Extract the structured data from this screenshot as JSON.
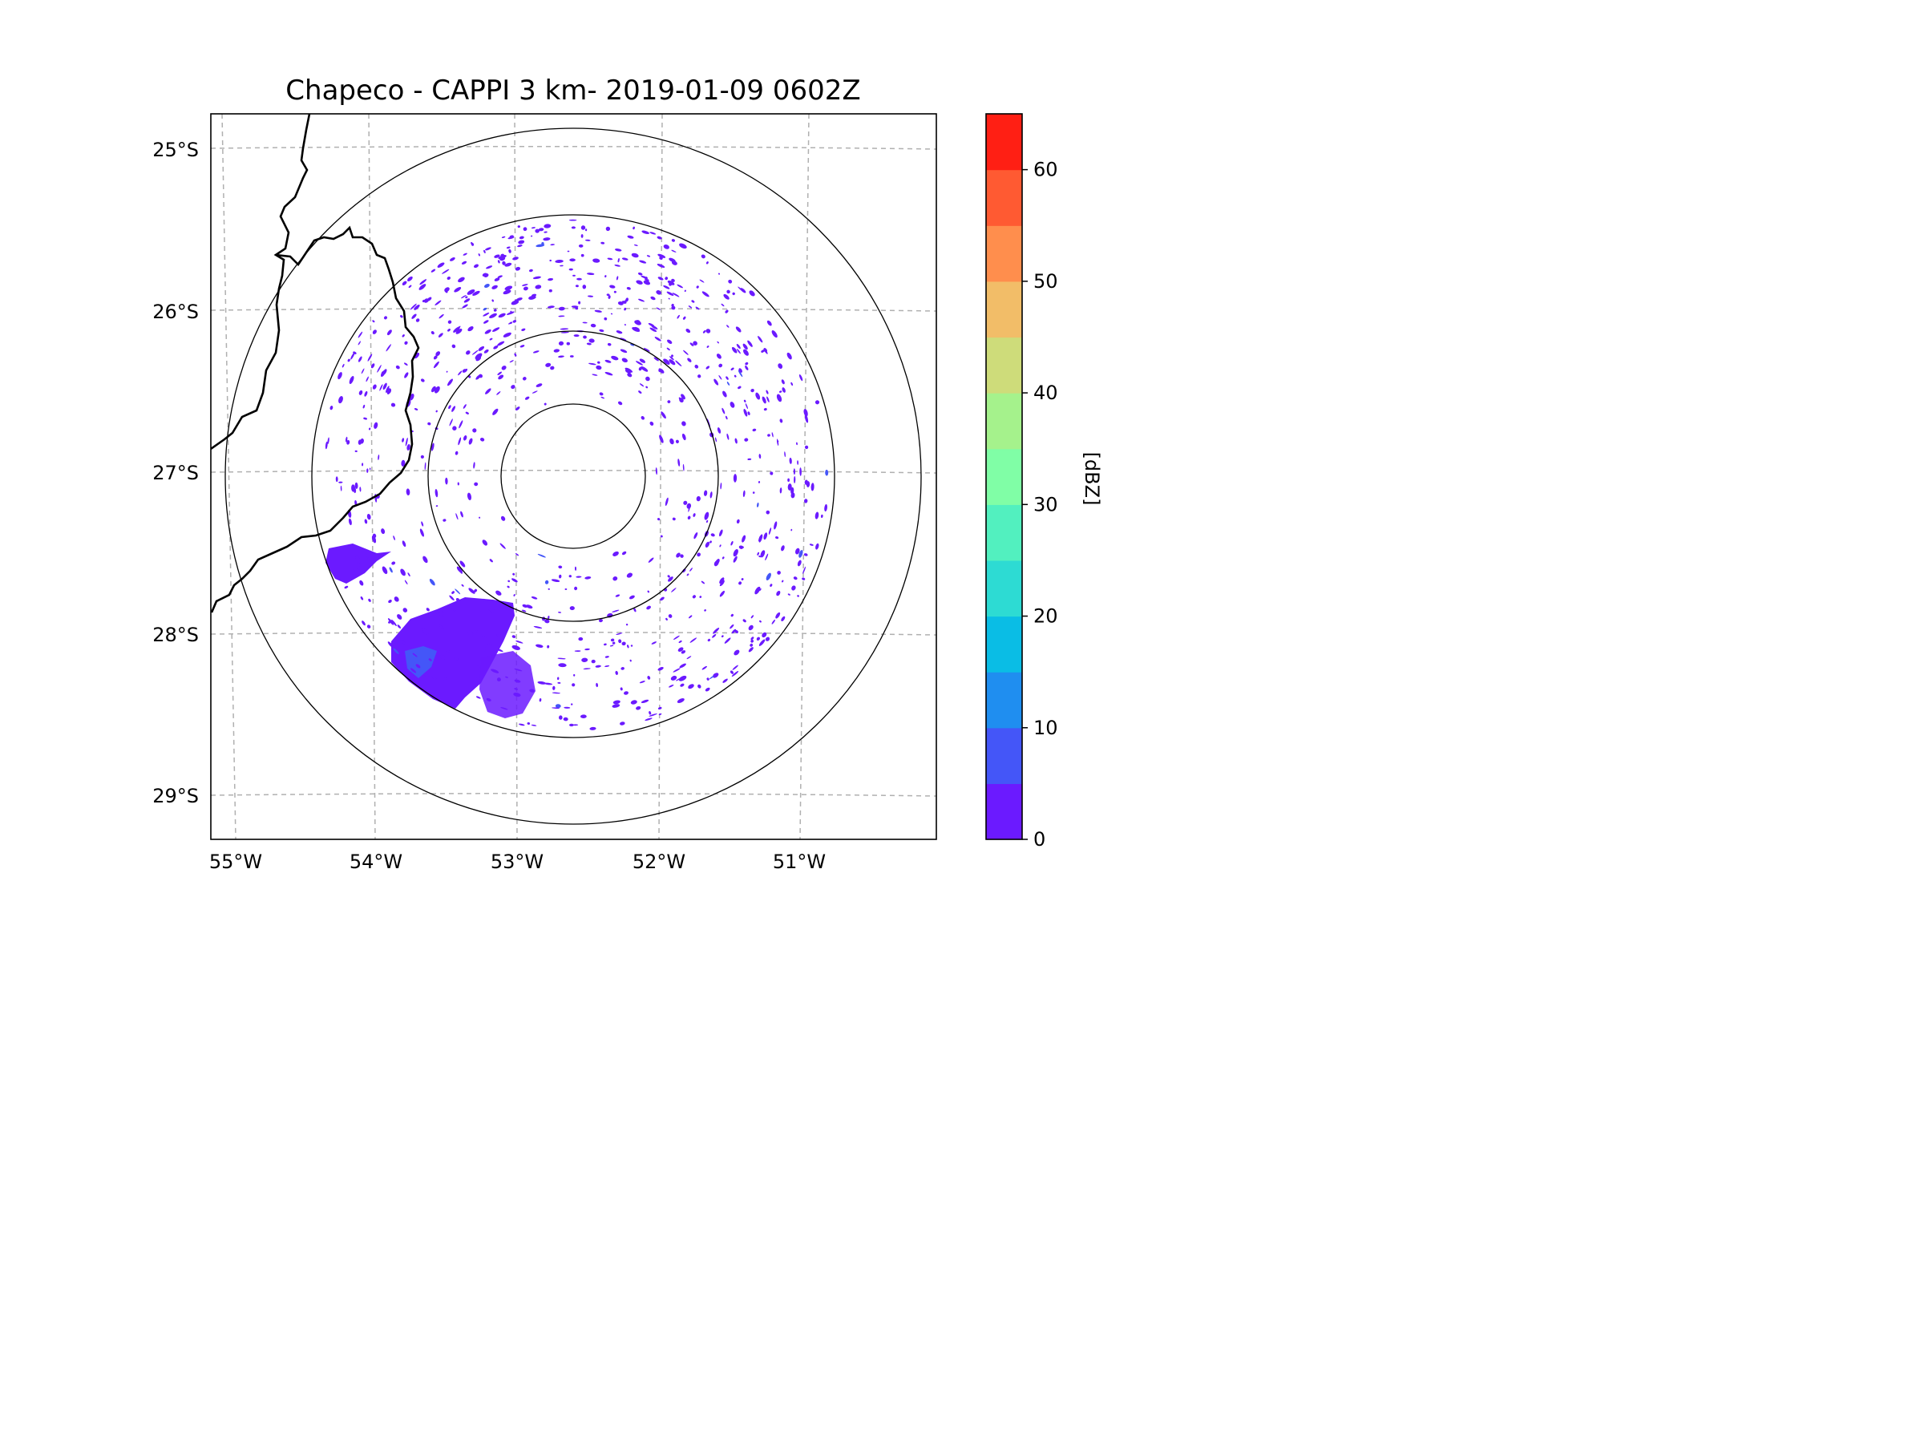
{
  "title": "Chapeco - CAPPI 3 km- 2019-01-09 0602Z",
  "map": {
    "lat_labels": [
      "25°S",
      "26°S",
      "27°S",
      "28°S",
      "29°S"
    ],
    "lon_labels": [
      "55°W",
      "54°W",
      "53°W",
      "52°W",
      "51°W"
    ],
    "lat_values": [
      -25,
      -26,
      -27,
      -28,
      -29
    ],
    "lon_values": [
      -55,
      -54,
      -53,
      -52,
      -51
    ],
    "gridlines": "dashed gray",
    "range_rings_count": 4
  },
  "colorbar": {
    "label": "[dBZ]",
    "ticks": [
      "0",
      "10",
      "20",
      "30",
      "40",
      "50",
      "60"
    ],
    "tick_values": [
      0,
      10,
      20,
      30,
      40,
      50,
      60
    ],
    "range": [
      0,
      65
    ],
    "bins": [
      {
        "from": 0,
        "to": 5,
        "color": "#6b1aff"
      },
      {
        "from": 5,
        "to": 10,
        "color": "#4456f8"
      },
      {
        "from": 10,
        "to": 15,
        "color": "#1f8ef0"
      },
      {
        "from": 15,
        "to": 20,
        "color": "#0abde5"
      },
      {
        "from": 20,
        "to": 25,
        "color": "#2ddbd3"
      },
      {
        "from": 25,
        "to": 30,
        "color": "#52f0bf"
      },
      {
        "from": 30,
        "to": 35,
        "color": "#80fea6"
      },
      {
        "from": 35,
        "to": 40,
        "color": "#a5f28c"
      },
      {
        "from": 40,
        "to": 45,
        "color": "#cedc7a"
      },
      {
        "from": 45,
        "to": 50,
        "color": "#f2bd68"
      },
      {
        "from": 50,
        "to": 55,
        "color": "#ff8e4d"
      },
      {
        "from": 55,
        "to": 60,
        "color": "#ff5a32"
      },
      {
        "from": 60,
        "to": 65,
        "color": "#ff1f14"
      }
    ]
  },
  "colors": {
    "echo": "#6b1aff",
    "echo_strong": "#4456f8",
    "border": "#000000",
    "grid": "#b0b0b0"
  }
}
